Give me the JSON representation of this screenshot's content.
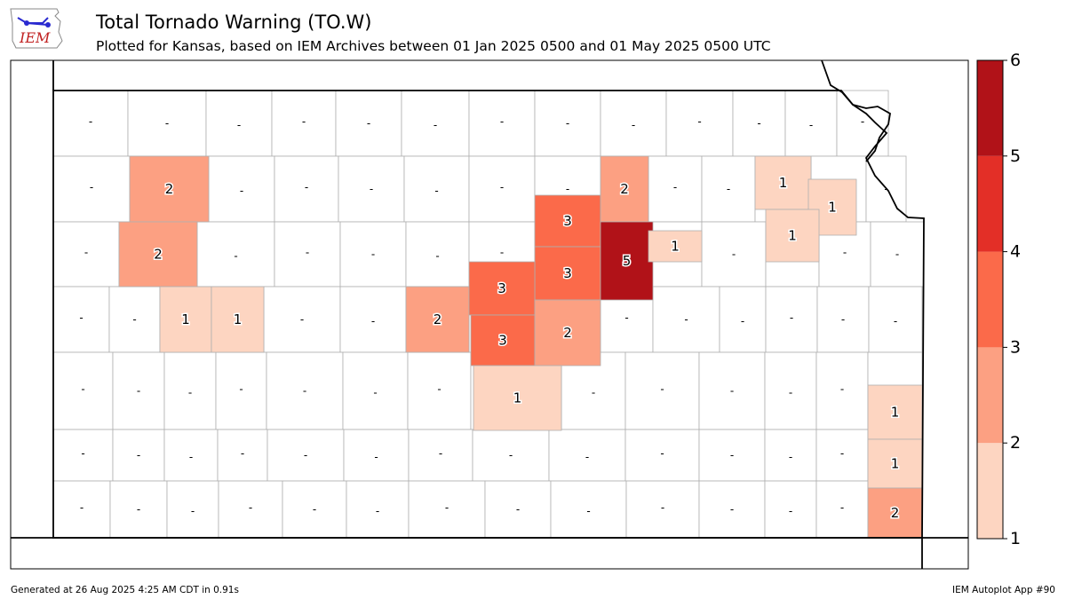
{
  "header": {
    "logo_text": "IEM",
    "title": "Total Tornado Warning (TO.W)",
    "subtitle": "Plotted for Kansas, based on IEM Archives  between 01 Jan 2025 0500 and 01 May 2025 0500 UTC"
  },
  "footer": {
    "generated": "Generated at 26 Aug 2025 4:25 AM CDT in 0.91s",
    "app": "IEM Autoplot App #90"
  },
  "colorbar": {
    "ticks": [
      "1",
      "2",
      "3",
      "4",
      "5",
      "6"
    ],
    "colors": [
      "#fdd5c1",
      "#fca082",
      "#fb6a4a",
      "#e32f27",
      "#b11218"
    ]
  },
  "colors": {
    "zero_fill": "#ffffff",
    "county_line": "#b0b0b0",
    "state_line": "#000000"
  },
  "map_data": {
    "zero_label": "-",
    "counts": [
      {
        "label": "2",
        "value": 2
      },
      {
        "label": "2",
        "value": 2
      },
      {
        "label": "1",
        "value": 1
      },
      {
        "label": "1",
        "value": 1
      },
      {
        "label": "2",
        "value": 2
      },
      {
        "label": "3",
        "value": 3
      },
      {
        "label": "3",
        "value": 3
      },
      {
        "label": "3",
        "value": 3
      },
      {
        "label": "3",
        "value": 3
      },
      {
        "label": "2",
        "value": 2
      },
      {
        "label": "1",
        "value": 1
      },
      {
        "label": "2",
        "value": 2
      },
      {
        "label": "5",
        "value": 5
      },
      {
        "label": "1",
        "value": 1
      },
      {
        "label": "1",
        "value": 1
      },
      {
        "label": "1",
        "value": 1
      },
      {
        "label": "1",
        "value": 1
      },
      {
        "label": "1",
        "value": 1
      },
      {
        "label": "1",
        "value": 1
      },
      {
        "label": "2",
        "value": 2
      }
    ]
  }
}
